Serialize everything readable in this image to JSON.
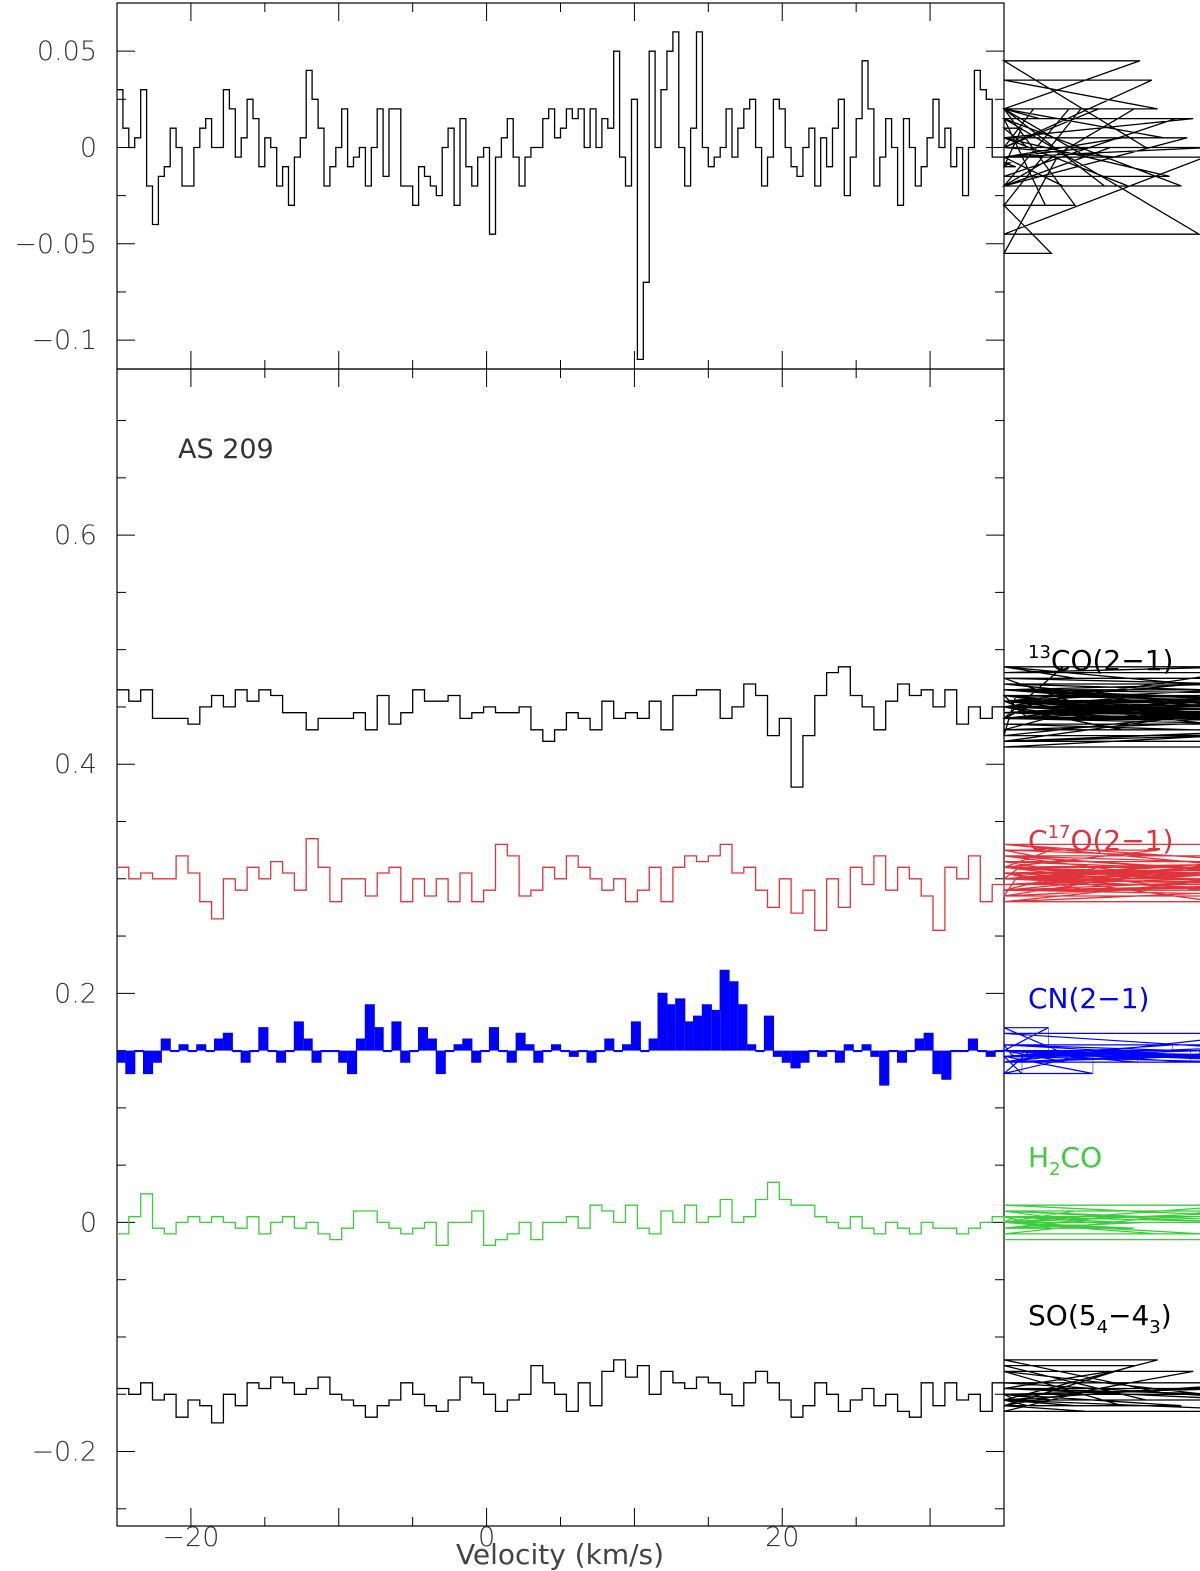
{
  "chart_data": [
    {
      "type": "line",
      "panel": "top",
      "xlabel": "",
      "ylabel": "",
      "xlim": [
        -25,
        35
      ],
      "ylim": [
        -0.115,
        0.075
      ],
      "yticks": [
        -0.1,
        -0.05,
        0,
        0.05
      ],
      "ytick_labels": [
        "−0.1",
        "−0.05",
        "0",
        "0.05"
      ],
      "series": [
        {
          "color": "#000000",
          "step": "mid",
          "x_start": -25,
          "dx": 0.4,
          "values": [
            0.03,
            0.01,
            0.0,
            0.005,
            0.03,
            -0.02,
            -0.04,
            -0.015,
            -0.01,
            0.01,
            0.0,
            -0.02,
            -0.02,
            0.0,
            0.01,
            0.015,
            0.0,
            0.0,
            0.03,
            0.02,
            -0.005,
            0.005,
            0.025,
            0.015,
            -0.01,
            0.005,
            0.0,
            -0.02,
            -0.01,
            -0.03,
            -0.005,
            0.005,
            0.04,
            0.025,
            0.01,
            -0.02,
            -0.01,
            0.0,
            0.02,
            -0.01,
            -0.005,
            0.0,
            -0.02,
            0.0,
            0.02,
            -0.015,
            0.02,
            0.02,
            -0.02,
            -0.02,
            -0.03,
            -0.01,
            -0.015,
            -0.02,
            -0.025,
            0.0,
            0.01,
            -0.03,
            0.015,
            -0.01,
            -0.02,
            -0.005,
            0.0,
            -0.045,
            -0.005,
            0.005,
            0.015,
            -0.005,
            -0.02,
            -0.005,
            0.0,
            0.0,
            0.015,
            0.02,
            0.005,
            0.01,
            0.02,
            0.015,
            0.02,
            0.0,
            0.02,
            0.0,
            0.015,
            0.01,
            0.05,
            -0.005,
            -0.02,
            0.025,
            -0.11,
            -0.07,
            0.05,
            0.0,
            0.03,
            0.05,
            0.06,
            0.0,
            -0.02,
            0.01,
            0.06,
            0.0,
            -0.01,
            -0.005,
            0.0,
            0.02,
            -0.005,
            0.01,
            0.02,
            0.025,
            0.0,
            -0.02,
            -0.005,
            0.025,
            0.02,
            0.0,
            -0.01,
            -0.015,
            0.0,
            0.01,
            -0.02,
            0.005,
            -0.01,
            0.01,
            0.025,
            -0.025,
            -0.005,
            0.015,
            0.045,
            0.02,
            -0.02,
            -0.005,
            0.015,
            0.0,
            -0.03,
            0.015,
            0.0,
            -0.02,
            -0.01,
            0.005,
            0.025,
            0.0,
            0.01,
            -0.01,
            0.0,
            -0.025,
            0.0,
            0.04,
            0.03,
            0.025,
            -0.005,
            -0.005,
            -0.01,
            -0.008,
            -0.01,
            0.01,
            0.0,
            0.02,
            0.015,
            -0.03,
            -0.055,
            -0.005,
            -0.02,
            0.02,
            -0.03,
            0.02,
            -0.005,
            0.0,
            0.02,
            -0.02,
            0.0,
            -0.005,
            0.005,
            -0.02,
            0.02,
            0.045,
            0.0,
            0.035,
            0.02,
            0.005,
            -0.015,
            0.015,
            -0.02,
            0.005,
            0.015,
            -0.045,
            -0.005,
            0.0
          ]
        }
      ]
    },
    {
      "type": "line",
      "panel": "bottom",
      "title": "AS 209",
      "xlabel": "Velocity (km/s)",
      "ylabel": "",
      "xlim": [
        -25,
        35
      ],
      "ylim": [
        -0.265,
        0.745
      ],
      "xticks": [
        -20,
        0,
        20
      ],
      "xtick_labels": [
        "−20",
        "0",
        "20"
      ],
      "yticks": [
        -0.2,
        0,
        0.2,
        0.4,
        0.6
      ],
      "ytick_labels": [
        "−0.2",
        "0",
        "0.2",
        "0.4",
        "0.6"
      ],
      "series": [
        {
          "name_base": "CO(2−1)",
          "name_sup": "13",
          "name_sub": "",
          "color": "#000000",
          "fill": false,
          "x_start": -25,
          "dx": 0.8,
          "values": [
            0.465,
            0.455,
            0.465,
            0.44,
            0.44,
            0.44,
            0.435,
            0.45,
            0.46,
            0.45,
            0.465,
            0.455,
            0.465,
            0.46,
            0.445,
            0.445,
            0.43,
            0.44,
            0.44,
            0.44,
            0.445,
            0.43,
            0.46,
            0.435,
            0.445,
            0.465,
            0.455,
            0.455,
            0.46,
            0.44,
            0.445,
            0.45,
            0.445,
            0.445,
            0.45,
            0.43,
            0.42,
            0.43,
            0.445,
            0.44,
            0.43,
            0.455,
            0.44,
            0.445,
            0.44,
            0.455,
            0.43,
            0.46,
            0.46,
            0.465,
            0.465,
            0.44,
            0.45,
            0.47,
            0.46,
            0.425,
            0.44,
            0.38,
            0.425,
            0.46,
            0.48,
            0.485,
            0.46,
            0.45,
            0.43,
            0.455,
            0.47,
            0.46,
            0.465,
            0.45,
            0.465,
            0.435,
            0.45,
            0.44,
            0.45,
            0.425,
            0.46,
            0.44,
            0.455,
            0.44,
            0.485,
            0.475,
            0.45,
            0.44,
            0.45,
            0.43,
            0.46,
            0.45,
            0.46,
            0.44,
            0.455,
            0.47,
            0.465,
            0.45,
            0.48,
            0.485,
            0.465,
            0.455,
            0.445,
            0.45,
            0.44,
            0.445,
            0.455,
            0.47,
            0.44,
            0.455,
            0.42,
            0.465,
            0.445,
            0.465,
            0.46,
            0.425,
            0.465,
            0.475,
            0.465,
            0.45,
            0.455,
            0.445,
            0.44,
            0.43,
            0.445,
            0.46,
            0.45,
            0.455,
            0.42,
            0.44,
            0.45,
            0.455,
            0.46,
            0.455,
            0.45,
            0.445,
            0.445,
            0.455,
            0.42,
            0.445,
            0.44,
            0.44,
            0.435,
            0.415,
            0.45,
            0.45,
            0.44,
            0.44,
            0.445,
            0.44,
            0.44,
            0.44,
            0.45,
            0.44,
            0.445,
            0.42,
            0.44,
            0.445,
            0.45,
            0.44,
            0.44,
            0.445,
            0.445
          ]
        },
        {
          "name_base": "C",
          "name_sup": "17",
          "name_rest": "O(2−1)",
          "color": "#e0343c",
          "fill": false,
          "x_start": -25,
          "dx": 0.8,
          "values": [
            0.31,
            0.3,
            0.305,
            0.3,
            0.3,
            0.32,
            0.305,
            0.28,
            0.265,
            0.3,
            0.29,
            0.31,
            0.3,
            0.315,
            0.305,
            0.29,
            0.335,
            0.31,
            0.28,
            0.3,
            0.3,
            0.285,
            0.305,
            0.31,
            0.28,
            0.3,
            0.285,
            0.3,
            0.28,
            0.305,
            0.28,
            0.29,
            0.33,
            0.32,
            0.285,
            0.29,
            0.31,
            0.3,
            0.32,
            0.31,
            0.3,
            0.29,
            0.3,
            0.28,
            0.29,
            0.31,
            0.28,
            0.31,
            0.32,
            0.315,
            0.32,
            0.33,
            0.305,
            0.31,
            0.29,
            0.275,
            0.3,
            0.27,
            0.29,
            0.255,
            0.3,
            0.275,
            0.31,
            0.295,
            0.32,
            0.29,
            0.31,
            0.3,
            0.285,
            0.255,
            0.31,
            0.3,
            0.32,
            0.28,
            0.295,
            0.285,
            0.3,
            0.315,
            0.31,
            0.325,
            0.315,
            0.305,
            0.29,
            0.31,
            0.305,
            0.3,
            0.3,
            0.31,
            0.325,
            0.32,
            0.31,
            0.3,
            0.305,
            0.28,
            0.3,
            0.31,
            0.285,
            0.32,
            0.29,
            0.3,
            0.3,
            0.305,
            0.31,
            0.29,
            0.285,
            0.3,
            0.295,
            0.31,
            0.3,
            0.32,
            0.295,
            0.305,
            0.31,
            0.315,
            0.3,
            0.33,
            0.29,
            0.33,
            0.3,
            0.28,
            0.3,
            0.29,
            0.295,
            0.32,
            0.305,
            0.3,
            0.31,
            0.29,
            0.3
          ]
        },
        {
          "name_base": "CN(2−1)",
          "color": "#0000ff",
          "fill": true,
          "baseline": 0.15,
          "x_start": -25,
          "dx": 0.6,
          "values": [
            0.14,
            0.13,
            0.15,
            0.13,
            0.14,
            0.16,
            0.15,
            0.155,
            0.15,
            0.155,
            0.15,
            0.16,
            0.165,
            0.15,
            0.14,
            0.15,
            0.17,
            0.15,
            0.14,
            0.15,
            0.175,
            0.16,
            0.14,
            0.15,
            0.15,
            0.14,
            0.13,
            0.16,
            0.19,
            0.17,
            0.15,
            0.175,
            0.14,
            0.15,
            0.17,
            0.16,
            0.13,
            0.15,
            0.155,
            0.16,
            0.14,
            0.15,
            0.17,
            0.15,
            0.14,
            0.165,
            0.155,
            0.14,
            0.15,
            0.155,
            0.15,
            0.145,
            0.15,
            0.14,
            0.15,
            0.16,
            0.15,
            0.155,
            0.175,
            0.15,
            0.16,
            0.2,
            0.19,
            0.195,
            0.175,
            0.18,
            0.19,
            0.185,
            0.22,
            0.21,
            0.19,
            0.155,
            0.15,
            0.18,
            0.145,
            0.14,
            0.135,
            0.14,
            0.15,
            0.145,
            0.15,
            0.14,
            0.155,
            0.15,
            0.155,
            0.145,
            0.12,
            0.15,
            0.14,
            0.15,
            0.16,
            0.165,
            0.13,
            0.125,
            0.15,
            0.15,
            0.16,
            0.15,
            0.145,
            0.15,
            0.155,
            0.145,
            0.13,
            0.15,
            0.15,
            0.17,
            0.15,
            0.14,
            0.15,
            0.145,
            0.13,
            0.15,
            0.145,
            0.15,
            0.15,
            0.14,
            0.145,
            0.145,
            0.145,
            0.155,
            0.15,
            0.14,
            0.145,
            0.15,
            0.15,
            0.145,
            0.14,
            0.14,
            0.14,
            0.165,
            0.15,
            0.14,
            0.15,
            0.145,
            0.155,
            0.14,
            0.15,
            0.14,
            0.15,
            0.15,
            0.14,
            0.15,
            0.14
          ]
        },
        {
          "name_base": "H",
          "name_sub": "2",
          "name_rest": "CO",
          "color": "#3ccc3c",
          "fill": false,
          "x_start": -25,
          "dx": 0.8,
          "values": [
            -0.01,
            0.005,
            0.025,
            -0.005,
            -0.01,
            0.0,
            0.005,
            0.0,
            0.005,
            0.0,
            -0.005,
            0.005,
            -0.01,
            0.0,
            0.005,
            -0.005,
            0.0,
            -0.01,
            -0.015,
            -0.005,
            0.01,
            0.01,
            0.0,
            -0.005,
            -0.01,
            -0.005,
            0.0,
            -0.02,
            0.0,
            0.0,
            0.01,
            -0.02,
            -0.015,
            -0.01,
            0.0,
            -0.015,
            0.0,
            0.0,
            0.005,
            -0.005,
            0.015,
            0.01,
            0.0,
            0.015,
            -0.005,
            -0.01,
            0.01,
            0.0,
            0.015,
            0.0,
            0.005,
            0.02,
            0.0,
            0.005,
            0.02,
            0.035,
            0.02,
            0.015,
            0.015,
            0.005,
            0.0,
            -0.005,
            0.005,
            -0.005,
            -0.01,
            0.0,
            -0.005,
            -0.01,
            0.0,
            -0.005,
            -0.005,
            -0.01,
            -0.005,
            0.0,
            0.005,
            0.0,
            0.005,
            0.0,
            0.005,
            -0.005,
            0.0,
            0.01,
            0.0,
            -0.005,
            0.005,
            0.0,
            -0.005,
            0.0,
            -0.01,
            -0.01,
            -0.01,
            -0.01,
            -0.01,
            0.01,
            0.0,
            0.015,
            0.005,
            0.0,
            0.01,
            0.0,
            -0.015
          ]
        },
        {
          "name_base": "SO(5",
          "name_sub": "4",
          "name_mid": "−4",
          "name_sub2": "3",
          "name_rest": ")",
          "color": "#000000",
          "fill": false,
          "x_start": -25,
          "dx": 0.8,
          "values": [
            -0.145,
            -0.15,
            -0.14,
            -0.155,
            -0.15,
            -0.17,
            -0.155,
            -0.16,
            -0.175,
            -0.15,
            -0.16,
            -0.14,
            -0.145,
            -0.135,
            -0.14,
            -0.15,
            -0.145,
            -0.135,
            -0.15,
            -0.155,
            -0.16,
            -0.17,
            -0.16,
            -0.155,
            -0.14,
            -0.15,
            -0.16,
            -0.165,
            -0.155,
            -0.135,
            -0.14,
            -0.15,
            -0.165,
            -0.155,
            -0.15,
            -0.125,
            -0.14,
            -0.15,
            -0.165,
            -0.14,
            -0.16,
            -0.13,
            -0.12,
            -0.135,
            -0.125,
            -0.15,
            -0.13,
            -0.14,
            -0.145,
            -0.135,
            -0.14,
            -0.15,
            -0.16,
            -0.14,
            -0.13,
            -0.14,
            -0.155,
            -0.17,
            -0.16,
            -0.14,
            -0.15,
            -0.165,
            -0.155,
            -0.145,
            -0.16,
            -0.15,
            -0.165,
            -0.17,
            -0.14,
            -0.16,
            -0.14,
            -0.155,
            -0.15,
            -0.165,
            -0.14,
            -0.15,
            -0.155,
            -0.16,
            -0.15,
            -0.155,
            -0.155,
            -0.16,
            -0.165,
            -0.145,
            -0.13,
            -0.16,
            -0.125,
            -0.155,
            -0.12,
            -0.15,
            -0.16,
            -0.13,
            -0.15,
            -0.145,
            -0.15,
            -0.145,
            -0.155,
            -0.14,
            -0.155,
            -0.165,
            -0.165
          ]
        }
      ]
    }
  ]
}
